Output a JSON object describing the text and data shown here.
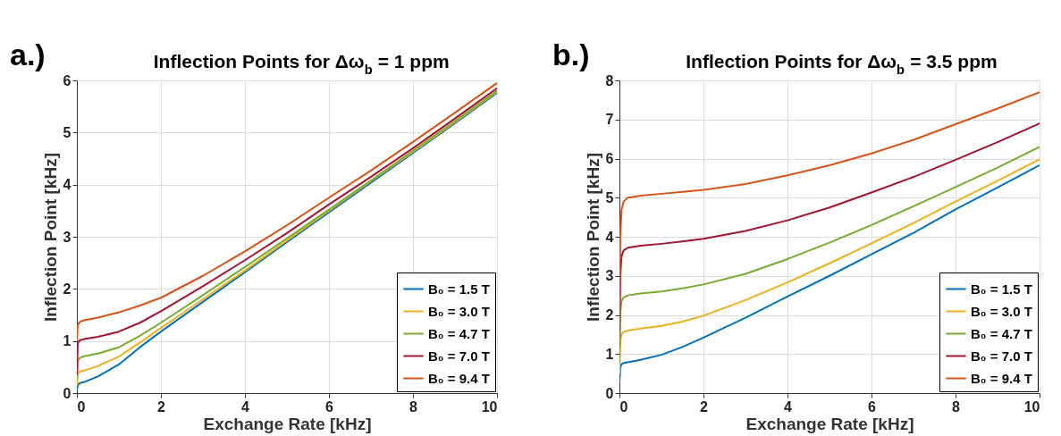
{
  "chart_data": [
    {
      "type": "line",
      "title": "Inflection Points for Δω$_{b}$ = 1 ppm",
      "annotations": [
        "a.)"
      ],
      "xlabel": "Exchange Rate [kHz]",
      "ylabel": "Inflection Point [kHz]",
      "x": [
        0,
        0.02,
        0.05,
        0.1,
        0.2,
        0.5,
        1,
        1.5,
        2,
        3,
        4,
        5,
        6,
        7,
        8,
        9,
        10
      ],
      "xlim": [
        0,
        10
      ],
      "xticks": [
        0,
        2,
        4,
        6,
        8,
        10
      ],
      "ylim": [
        0,
        6
      ],
      "yticks": [
        0,
        1,
        2,
        3,
        4,
        5,
        6
      ],
      "grid": true,
      "legend": "bottom right",
      "series": [
        {
          "name": "B₀ = 1.5 T",
          "color": "#0072bd",
          "values": [
            0.05,
            0.15,
            0.18,
            0.2,
            0.22,
            0.32,
            0.55,
            0.88,
            1.18,
            1.75,
            2.32,
            2.9,
            3.47,
            4.04,
            4.61,
            5.18,
            5.76
          ]
        },
        {
          "name": "B₀ = 3.0 T",
          "color": "#edb120",
          "values": [
            0.15,
            0.35,
            0.4,
            0.42,
            0.44,
            0.52,
            0.7,
            0.97,
            1.25,
            1.8,
            2.35,
            2.93,
            3.5,
            4.07,
            4.63,
            5.2,
            5.78
          ]
        },
        {
          "name": "B₀ = 4.7 T",
          "color": "#77ac30",
          "values": [
            0.25,
            0.6,
            0.66,
            0.69,
            0.71,
            0.76,
            0.88,
            1.1,
            1.35,
            1.88,
            2.42,
            2.97,
            3.52,
            4.08,
            4.65,
            5.22,
            5.8
          ]
        },
        {
          "name": "B₀ = 7.0 T",
          "color": "#a2142f",
          "values": [
            0.35,
            0.95,
            1.0,
            1.02,
            1.04,
            1.08,
            1.18,
            1.35,
            1.57,
            2.05,
            2.55,
            3.07,
            3.62,
            4.15,
            4.7,
            5.27,
            5.85
          ]
        },
        {
          "name": "B₀ = 9.4 T",
          "color": "#d95319",
          "values": [
            1.0,
            1.3,
            1.35,
            1.38,
            1.4,
            1.45,
            1.55,
            1.68,
            1.83,
            2.25,
            2.72,
            3.22,
            3.75,
            4.27,
            4.82,
            5.38,
            5.95
          ]
        }
      ]
    },
    {
      "type": "line",
      "title": "Inflection Points for Δω$_{b}$ = 3.5 ppm",
      "annotations": [
        "b.)"
      ],
      "xlabel": "Exchange Rate [kHz]",
      "ylabel": "Inflection Point [kHz]",
      "x": [
        0,
        0.02,
        0.05,
        0.1,
        0.2,
        0.5,
        1,
        1.5,
        2,
        3,
        4,
        5,
        6,
        7,
        8,
        9,
        10
      ],
      "xlim": [
        0,
        10
      ],
      "xticks": [
        0,
        2,
        4,
        6,
        8,
        10
      ],
      "ylim": [
        0,
        8
      ],
      "yticks": [
        0,
        1,
        2,
        3,
        4,
        5,
        6,
        7,
        8
      ],
      "grid": true,
      "legend": "bottom right",
      "series": [
        {
          "name": "B₀ = 1.5 T",
          "color": "#0072bd",
          "values": [
            0.25,
            0.65,
            0.74,
            0.77,
            0.79,
            0.85,
            0.98,
            1.18,
            1.42,
            1.93,
            2.47,
            3.0,
            3.55,
            4.1,
            4.7,
            5.26,
            5.83
          ]
        },
        {
          "name": "B₀ = 3.0 T",
          "color": "#edb120",
          "values": [
            0.5,
            1.35,
            1.5,
            1.56,
            1.6,
            1.65,
            1.72,
            1.83,
            1.98,
            2.38,
            2.83,
            3.32,
            3.83,
            4.35,
            4.9,
            5.43,
            5.98
          ]
        },
        {
          "name": "B₀ = 4.7 T",
          "color": "#77ac30",
          "values": [
            0.8,
            2.1,
            2.35,
            2.45,
            2.5,
            2.55,
            2.6,
            2.68,
            2.78,
            3.05,
            3.43,
            3.85,
            4.3,
            4.78,
            5.27,
            5.77,
            6.3
          ]
        },
        {
          "name": "B₀ = 7.0 T",
          "color": "#a2142f",
          "values": [
            1.2,
            3.0,
            3.5,
            3.65,
            3.72,
            3.77,
            3.82,
            3.88,
            3.95,
            4.15,
            4.42,
            4.75,
            5.13,
            5.53,
            5.97,
            6.42,
            6.9
          ]
        },
        {
          "name": "B₀ = 9.4 T",
          "color": "#d95319",
          "values": [
            1.2,
            4.0,
            4.7,
            4.9,
            5.0,
            5.05,
            5.1,
            5.15,
            5.2,
            5.35,
            5.57,
            5.83,
            6.13,
            6.48,
            6.88,
            7.28,
            7.7
          ]
        }
      ]
    }
  ]
}
